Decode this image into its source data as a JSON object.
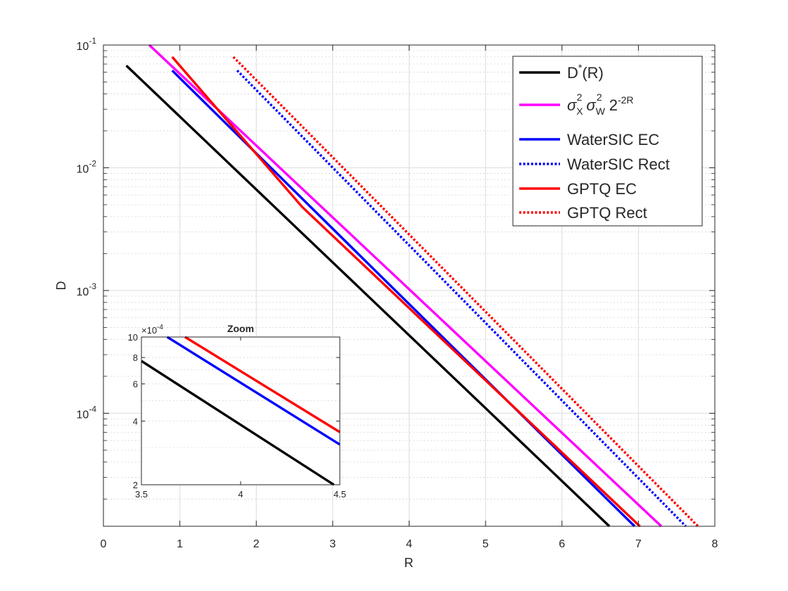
{
  "chart_data": [
    {
      "type": "line",
      "title": "",
      "xlabel": "R",
      "ylabel": "D",
      "xlim": [
        0,
        8
      ],
      "ylim": [
        1.2e-05,
        0.1
      ],
      "yscale": "log",
      "grid": true,
      "legend_position": "top-right",
      "xticks": [
        0,
        1,
        2,
        3,
        4,
        5,
        6,
        7,
        8
      ],
      "xtick_labels": [
        "0",
        "1",
        "2",
        "3",
        "4",
        "5",
        "6",
        "7",
        "8"
      ],
      "yticks": [
        0.0001,
        0.001,
        0.01,
        0.1
      ],
      "ytick_labels": [
        {
          "base": "10",
          "exp": "-4"
        },
        {
          "base": "10",
          "exp": "-3"
        },
        {
          "base": "10",
          "exp": "-2"
        },
        {
          "base": "10",
          "exp": "-1"
        }
      ],
      "series": [
        {
          "name": "D*(R)",
          "legend": {
            "base": "D",
            "sup": "*",
            "tail": "(R)"
          },
          "color": "#000000",
          "style": "solid",
          "x": [
            0.3,
            6.62
          ],
          "y": [
            0.068,
            1.2e-05
          ]
        },
        {
          "name": "σX2 σW2 2-2R",
          "legend": {
            "s1": "σ",
            "sub1": "X",
            "sup1": "2",
            "s2": "σ",
            "sub2": "W",
            "sup2": "2",
            "s3": "2",
            "sup3": "-2R"
          },
          "color": "#ff00ff",
          "style": "solid",
          "x": [
            0.6,
            7.3
          ],
          "y": [
            0.1,
            1.2e-05
          ]
        },
        {
          "name": "WaterSIC EC",
          "color": "#0000ff",
          "style": "solid",
          "x": [
            0.9,
            6.95
          ],
          "y": [
            0.062,
            1.2e-05
          ]
        },
        {
          "name": "WaterSIC Rect",
          "color": "#0000ff",
          "style": "dotted",
          "x": [
            1.75,
            7.62
          ],
          "y": [
            0.062,
            1.2e-05
          ]
        },
        {
          "name": "GPTQ EC",
          "color": "#ff0000",
          "style": "solid",
          "x": [
            0.9,
            2.6,
            7.02
          ],
          "y": [
            0.08,
            0.0048,
            1.2e-05
          ]
        },
        {
          "name": "GPTQ Rect",
          "color": "#ff0000",
          "style": "dotted",
          "x": [
            1.7,
            7.78
          ],
          "y": [
            0.08,
            1.2e-05
          ]
        }
      ]
    },
    {
      "type": "line",
      "title": "Zoom",
      "xlabel": "",
      "ylabel": "",
      "xlim": [
        3.5,
        4.5
      ],
      "ylim": [
        2,
        10
      ],
      "yscale": "log",
      "scale_label": {
        "base": "×10",
        "exp": "-4"
      },
      "xticks": [
        3.5,
        4,
        4.5
      ],
      "xtick_labels": [
        "3.5",
        "4",
        "4.5"
      ],
      "yticks": [
        2,
        4,
        6,
        8,
        10
      ],
      "ytick_labels": [
        "2",
        "4",
        "6",
        "8",
        "10"
      ],
      "series": [
        {
          "name": "D*(R)",
          "color": "#000000",
          "style": "solid",
          "x": [
            3.5,
            4.47
          ],
          "y": [
            7.7,
            2.0
          ]
        },
        {
          "name": "WaterSIC EC",
          "color": "#0000ff",
          "style": "solid",
          "x": [
            3.63,
            4.5
          ],
          "y": [
            10,
            3.1
          ]
        },
        {
          "name": "GPTQ EC",
          "color": "#ff0000",
          "style": "solid",
          "x": [
            3.72,
            4.5
          ],
          "y": [
            10,
            3.55
          ]
        }
      ]
    }
  ]
}
